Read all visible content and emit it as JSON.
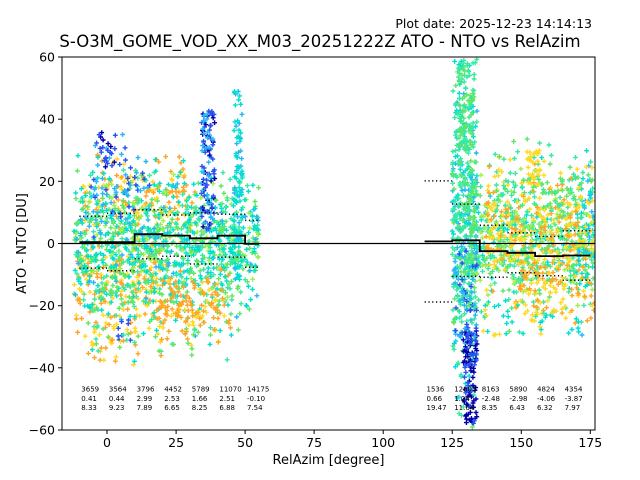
{
  "header": {
    "plot_date": "Plot date: 2025-12-23 14:14:13"
  },
  "chart_data": {
    "type": "scatter",
    "title": "S-O3M_GOME_VOD_XX_M03_20251222Z ATO - NTO vs RelAzim",
    "xlabel": "RelAzim [degree]",
    "ylabel": "ATO - NTO [DU]",
    "xlim": [
      -16.3,
      176.7
    ],
    "ylim": [
      -60,
      60
    ],
    "xticks": [
      0,
      25,
      50,
      75,
      100,
      125,
      150,
      175
    ],
    "yticks": [
      -60,
      -40,
      -20,
      0,
      20,
      40,
      60
    ],
    "grid": false,
    "zero_line_y": 0,
    "marker": "+",
    "palette": [
      "#0000a8",
      "#2a52f0",
      "#29b6f6",
      "#00e0cf",
      "#3ae8a0",
      "#5fe663",
      "#9ef04e",
      "#ffd927",
      "#ffa424"
    ],
    "bins_left": [
      {
        "x0": -10,
        "x1": 0,
        "count": "3659",
        "mean": "0.41",
        "std": "8.33"
      },
      {
        "x0": 0,
        "x1": 10,
        "count": "3564",
        "mean": "0.44",
        "std": "9.23"
      },
      {
        "x0": 10,
        "x1": 20,
        "count": "3796",
        "mean": "2.99",
        "std": "7.89"
      },
      {
        "x0": 20,
        "x1": 30,
        "count": "4452",
        "mean": "2.53",
        "std": "6.65"
      },
      {
        "x0": 30,
        "x1": 40,
        "count": "5789",
        "mean": "1.66",
        "std": "8.25"
      },
      {
        "x0": 40,
        "x1": 50,
        "count": "11070",
        "mean": "2.51",
        "std": "6.88"
      },
      {
        "x0": 50,
        "x1": 60,
        "count": "14175",
        "mean": "-0.10",
        "std": "7.54"
      }
    ],
    "bins_right": [
      {
        "x0": 115,
        "x1": 125,
        "count": "1536",
        "mean": "0.66",
        "std": "19.47"
      },
      {
        "x0": 125,
        "x1": 135,
        "count": "12805",
        "mean": "1.04",
        "std": "11.64"
      },
      {
        "x0": 135,
        "x1": 145,
        "count": "8163",
        "mean": "-2.48",
        "std": "8.35"
      },
      {
        "x0": 145,
        "x1": 155,
        "count": "5890",
        "mean": "-2.98",
        "std": "6.43"
      },
      {
        "x0": 155,
        "x1": 165,
        "count": "4824",
        "mean": "-4.06",
        "std": "6.32"
      },
      {
        "x0": 165,
        "x1": 175,
        "count": "4354",
        "mean": "-3.87",
        "std": "7.97"
      }
    ],
    "draw_range_left": [
      -10,
      55
    ],
    "draw_range_right": [
      115,
      176.5
    ],
    "scatter_clusters": [
      {
        "x0": -12,
        "x1": 22,
        "dist": "normal",
        "mean": -13,
        "sigma": 8,
        "n": 210,
        "colors": [
          7,
          8,
          8,
          7
        ]
      },
      {
        "x0": -10,
        "x1": 32,
        "dist": "normal",
        "mean": 16,
        "sigma": 6,
        "n": 150,
        "colors": [
          8,
          7
        ]
      },
      {
        "x0": -12,
        "x1": 55,
        "dist": "normal",
        "mean": 2,
        "sigma": 9,
        "n": 680,
        "colors": [
          4,
          5,
          4,
          3,
          5,
          6
        ]
      },
      {
        "x0": -12,
        "x1": 55,
        "dist": "normal",
        "mean": 3,
        "sigma": 11,
        "n": 300,
        "colors": [
          2,
          3,
          3
        ]
      },
      {
        "x0": -10,
        "x1": 52,
        "dist": "normal",
        "mean": -16,
        "sigma": 7,
        "n": 210,
        "colors": [
          4,
          5,
          3
        ]
      },
      {
        "x0": 18,
        "x1": 45,
        "dist": "normal",
        "mean": -21,
        "sigma": 5,
        "n": 140,
        "colors": [
          8,
          7,
          8
        ]
      },
      {
        "x0": -6,
        "x1": 16,
        "dist": "normal",
        "mean": 20,
        "sigma": 7,
        "n": 60,
        "colors": [
          1,
          2
        ]
      },
      {
        "x0": -3,
        "x1": 3,
        "dist": "uniform",
        "ymin": 24,
        "ymax": 36,
        "n": 18,
        "colors": [
          0,
          1
        ]
      },
      {
        "x0": 2,
        "x1": 9,
        "dist": "uniform",
        "ymin": -33,
        "ymax": -24,
        "n": 8,
        "colors": [
          1
        ]
      },
      {
        "x0": -8,
        "x1": 12,
        "dist": "uniform",
        "ymin": -38,
        "ymax": -26,
        "n": 28,
        "colors": [
          7,
          8
        ]
      },
      {
        "x0": -5,
        "x1": 34,
        "dist": "uniform",
        "ymin": -36,
        "ymax": -26,
        "n": 22,
        "colors": [
          4,
          5
        ]
      },
      {
        "x0": 34,
        "x1": 39,
        "dist": "uniform",
        "ymin": 4,
        "ymax": 43,
        "n": 110,
        "colors": [
          1,
          0,
          2,
          1
        ]
      },
      {
        "x0": 46,
        "x1": 49,
        "dist": "uniform",
        "ymin": -12,
        "ymax": 49,
        "n": 95,
        "colors": [
          2,
          3,
          3
        ]
      },
      {
        "x0": 125,
        "x1": 134,
        "dist": "normal",
        "mean": 5,
        "sigma": 22,
        "n": 480,
        "colors": [
          4,
          3,
          5,
          2,
          4
        ]
      },
      {
        "x0": 126,
        "x1": 133,
        "dist": "uniform",
        "ymin": 30,
        "ymax": 58.5,
        "n": 120,
        "colors": [
          4,
          5,
          3,
          4
        ]
      },
      {
        "x0": 134,
        "x1": 176.5,
        "dist": "normal",
        "mean": 0,
        "sigma": 9,
        "n": 580,
        "colors": [
          4,
          5,
          3,
          4,
          6
        ]
      },
      {
        "x0": 137,
        "x1": 172,
        "dist": "normal",
        "mean": 4,
        "sigma": 9,
        "n": 270,
        "colors": [
          7,
          8,
          7
        ]
      },
      {
        "x0": 148,
        "x1": 176.5,
        "dist": "normal",
        "mean": -13,
        "sigma": 6,
        "n": 115,
        "colors": [
          8,
          7
        ]
      },
      {
        "x0": 140,
        "x1": 176.5,
        "dist": "normal",
        "mean": 17,
        "sigma": 6,
        "n": 95,
        "colors": [
          4,
          5
        ]
      },
      {
        "x0": 129,
        "x1": 134,
        "dist": "uniform",
        "ymin": -58,
        "ymax": -28,
        "n": 105,
        "colors": [
          0,
          1,
          0
        ]
      },
      {
        "x0": 126,
        "x1": 134,
        "dist": "uniform",
        "ymin": -30,
        "ymax": -2,
        "n": 50,
        "colors": [
          1,
          2
        ]
      },
      {
        "x0": 152,
        "x1": 157,
        "dist": "uniform",
        "ymin": 18,
        "ymax": 30,
        "n": 30,
        "colors": [
          7
        ]
      },
      {
        "x0": 170,
        "x1": 176.5,
        "dist": "normal",
        "mean": 5,
        "sigma": 10,
        "n": 60,
        "colors": [
          3,
          2,
          7
        ]
      },
      {
        "x0": 136,
        "x1": 162,
        "dist": "uniform",
        "ymin": -30,
        "ymax": -18,
        "n": 45,
        "colors": [
          4,
          3,
          7
        ]
      },
      {
        "x0": 165,
        "x1": 172,
        "dist": "uniform",
        "ymin": -29,
        "ymax": -24,
        "n": 6,
        "colors": [
          3
        ]
      }
    ]
  }
}
